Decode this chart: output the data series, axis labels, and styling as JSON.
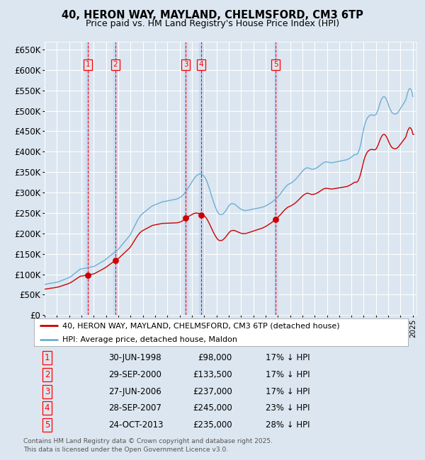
{
  "title": "40, HERON WAY, MAYLAND, CHELMSFORD, CM3 6TP",
  "subtitle": "Price paid vs. HM Land Registry's House Price Index (HPI)",
  "ylim": [
    0,
    670000
  ],
  "yticks": [
    0,
    50000,
    100000,
    150000,
    200000,
    250000,
    300000,
    350000,
    400000,
    450000,
    500000,
    550000,
    600000,
    650000
  ],
  "ytick_labels": [
    "£0",
    "£50K",
    "£100K",
    "£150K",
    "£200K",
    "£250K",
    "£300K",
    "£350K",
    "£400K",
    "£450K",
    "£500K",
    "£550K",
    "£600K",
    "£650K"
  ],
  "bg_color": "#dce6f0",
  "grid_color": "#ffffff",
  "sale_color": "#cc0000",
  "hpi_color": "#6baed6",
  "sale_label": "40, HERON WAY, MAYLAND, CHELMSFORD, CM3 6TP (detached house)",
  "hpi_label": "HPI: Average price, detached house, Maldon",
  "footer": "Contains HM Land Registry data © Crown copyright and database right 2025.\nThis data is licensed under the Open Government Licence v3.0.",
  "transactions": [
    {
      "num": 1,
      "date": "30-JUN-1998",
      "price": 98000,
      "pct": "17%",
      "year_x": 1998.5
    },
    {
      "num": 2,
      "date": "29-SEP-2000",
      "price": 133500,
      "pct": "17%",
      "year_x": 2000.75
    },
    {
      "num": 3,
      "date": "27-JUN-2006",
      "price": 237000,
      "pct": "17%",
      "year_x": 2006.5
    },
    {
      "num": 4,
      "date": "28-SEP-2007",
      "price": 245000,
      "pct": "23%",
      "year_x": 2007.75
    },
    {
      "num": 5,
      "date": "24-OCT-2013",
      "price": 235000,
      "pct": "28%",
      "year_x": 2013.83
    }
  ],
  "hpi_data": [
    [
      1995.0,
      75000
    ],
    [
      1995.08,
      75500
    ],
    [
      1995.17,
      76000
    ],
    [
      1995.25,
      76500
    ],
    [
      1995.33,
      77000
    ],
    [
      1995.42,
      77500
    ],
    [
      1995.5,
      78000
    ],
    [
      1995.58,
      78200
    ],
    [
      1995.67,
      78500
    ],
    [
      1995.75,
      79000
    ],
    [
      1995.83,
      79500
    ],
    [
      1995.92,
      80000
    ],
    [
      1996.0,
      80500
    ],
    [
      1996.08,
      81000
    ],
    [
      1996.17,
      82000
    ],
    [
      1996.25,
      83000
    ],
    [
      1996.33,
      84000
    ],
    [
      1996.42,
      85000
    ],
    [
      1996.5,
      86000
    ],
    [
      1996.58,
      87000
    ],
    [
      1996.67,
      88000
    ],
    [
      1996.75,
      89000
    ],
    [
      1996.83,
      90000
    ],
    [
      1996.92,
      91000
    ],
    [
      1997.0,
      92000
    ],
    [
      1997.08,
      93500
    ],
    [
      1997.17,
      95000
    ],
    [
      1997.25,
      97000
    ],
    [
      1997.33,
      99000
    ],
    [
      1997.42,
      101000
    ],
    [
      1997.5,
      103000
    ],
    [
      1997.58,
      105000
    ],
    [
      1997.67,
      107000
    ],
    [
      1997.75,
      109000
    ],
    [
      1997.83,
      111000
    ],
    [
      1997.92,
      113000
    ],
    [
      1998.0,
      113000
    ],
    [
      1998.08,
      113500
    ],
    [
      1998.17,
      114000
    ],
    [
      1998.25,
      114500
    ],
    [
      1998.33,
      115000
    ],
    [
      1998.42,
      115500
    ],
    [
      1998.5,
      116000
    ],
    [
      1998.58,
      116500
    ],
    [
      1998.67,
      117000
    ],
    [
      1998.75,
      117500
    ],
    [
      1998.83,
      118000
    ],
    [
      1998.92,
      118500
    ],
    [
      1999.0,
      119000
    ],
    [
      1999.08,
      120000
    ],
    [
      1999.17,
      121500
    ],
    [
      1999.25,
      123000
    ],
    [
      1999.33,
      124500
    ],
    [
      1999.42,
      126000
    ],
    [
      1999.5,
      127500
    ],
    [
      1999.58,
      129000
    ],
    [
      1999.67,
      130500
    ],
    [
      1999.75,
      132000
    ],
    [
      1999.83,
      133500
    ],
    [
      1999.92,
      135000
    ],
    [
      2000.0,
      137000
    ],
    [
      2000.08,
      139000
    ],
    [
      2000.17,
      141000
    ],
    [
      2000.25,
      143000
    ],
    [
      2000.33,
      145000
    ],
    [
      2000.42,
      147000
    ],
    [
      2000.5,
      149000
    ],
    [
      2000.58,
      151000
    ],
    [
      2000.67,
      153000
    ],
    [
      2000.75,
      155000
    ],
    [
      2000.83,
      157000
    ],
    [
      2000.92,
      159000
    ],
    [
      2001.0,
      161000
    ],
    [
      2001.08,
      164000
    ],
    [
      2001.17,
      167000
    ],
    [
      2001.25,
      170000
    ],
    [
      2001.33,
      173000
    ],
    [
      2001.42,
      176000
    ],
    [
      2001.5,
      179000
    ],
    [
      2001.58,
      182000
    ],
    [
      2001.67,
      185000
    ],
    [
      2001.75,
      188000
    ],
    [
      2001.83,
      191000
    ],
    [
      2001.92,
      194000
    ],
    [
      2002.0,
      198000
    ],
    [
      2002.08,
      203000
    ],
    [
      2002.17,
      208000
    ],
    [
      2002.25,
      213000
    ],
    [
      2002.33,
      218000
    ],
    [
      2002.42,
      223000
    ],
    [
      2002.5,
      228000
    ],
    [
      2002.58,
      233000
    ],
    [
      2002.67,
      237000
    ],
    [
      2002.75,
      241000
    ],
    [
      2002.83,
      244000
    ],
    [
      2002.92,
      247000
    ],
    [
      2003.0,
      249000
    ],
    [
      2003.08,
      251000
    ],
    [
      2003.17,
      253000
    ],
    [
      2003.25,
      255000
    ],
    [
      2003.33,
      257000
    ],
    [
      2003.42,
      259000
    ],
    [
      2003.5,
      261000
    ],
    [
      2003.58,
      263000
    ],
    [
      2003.67,
      265000
    ],
    [
      2003.75,
      267000
    ],
    [
      2003.83,
      268000
    ],
    [
      2003.92,
      269000
    ],
    [
      2004.0,
      270000
    ],
    [
      2004.08,
      271000
    ],
    [
      2004.17,
      272000
    ],
    [
      2004.25,
      273000
    ],
    [
      2004.33,
      274000
    ],
    [
      2004.42,
      275000
    ],
    [
      2004.5,
      276000
    ],
    [
      2004.58,
      277000
    ],
    [
      2004.67,
      277500
    ],
    [
      2004.75,
      278000
    ],
    [
      2004.83,
      278500
    ],
    [
      2004.92,
      279000
    ],
    [
      2005.0,
      279500
    ],
    [
      2005.08,
      280000
    ],
    [
      2005.17,
      280500
    ],
    [
      2005.25,
      281000
    ],
    [
      2005.33,
      281500
    ],
    [
      2005.42,
      282000
    ],
    [
      2005.5,
      282500
    ],
    [
      2005.58,
      283000
    ],
    [
      2005.67,
      283500
    ],
    [
      2005.75,
      284000
    ],
    [
      2005.83,
      285000
    ],
    [
      2005.92,
      286000
    ],
    [
      2006.0,
      287500
    ],
    [
      2006.08,
      289000
    ],
    [
      2006.17,
      291000
    ],
    [
      2006.25,
      293000
    ],
    [
      2006.33,
      296000
    ],
    [
      2006.42,
      299000
    ],
    [
      2006.5,
      302000
    ],
    [
      2006.58,
      306000
    ],
    [
      2006.67,
      310000
    ],
    [
      2006.75,
      314000
    ],
    [
      2006.83,
      318000
    ],
    [
      2006.92,
      322000
    ],
    [
      2007.0,
      326000
    ],
    [
      2007.08,
      330000
    ],
    [
      2007.17,
      334000
    ],
    [
      2007.25,
      337000
    ],
    [
      2007.33,
      340000
    ],
    [
      2007.42,
      342000
    ],
    [
      2007.5,
      344000
    ],
    [
      2007.58,
      345000
    ],
    [
      2007.67,
      345500
    ],
    [
      2007.75,
      345000
    ],
    [
      2007.83,
      344000
    ],
    [
      2007.92,
      342000
    ],
    [
      2008.0,
      340000
    ],
    [
      2008.08,
      336000
    ],
    [
      2008.17,
      331000
    ],
    [
      2008.25,
      325000
    ],
    [
      2008.33,
      318000
    ],
    [
      2008.42,
      310000
    ],
    [
      2008.5,
      302000
    ],
    [
      2008.58,
      294000
    ],
    [
      2008.67,
      286000
    ],
    [
      2008.75,
      278000
    ],
    [
      2008.83,
      271000
    ],
    [
      2008.92,
      264000
    ],
    [
      2009.0,
      258000
    ],
    [
      2009.08,
      253000
    ],
    [
      2009.17,
      249000
    ],
    [
      2009.25,
      247000
    ],
    [
      2009.33,
      246000
    ],
    [
      2009.42,
      246000
    ],
    [
      2009.5,
      247000
    ],
    [
      2009.58,
      249000
    ],
    [
      2009.67,
      252000
    ],
    [
      2009.75,
      255000
    ],
    [
      2009.83,
      259000
    ],
    [
      2009.92,
      263000
    ],
    [
      2010.0,
      267000
    ],
    [
      2010.08,
      270000
    ],
    [
      2010.17,
      272000
    ],
    [
      2010.25,
      273000
    ],
    [
      2010.33,
      273000
    ],
    [
      2010.42,
      272000
    ],
    [
      2010.5,
      271000
    ],
    [
      2010.58,
      269000
    ],
    [
      2010.67,
      267000
    ],
    [
      2010.75,
      265000
    ],
    [
      2010.83,
      263000
    ],
    [
      2010.92,
      261000
    ],
    [
      2011.0,
      259000
    ],
    [
      2011.08,
      258000
    ],
    [
      2011.17,
      257000
    ],
    [
      2011.25,
      256500
    ],
    [
      2011.33,
      256000
    ],
    [
      2011.42,
      256000
    ],
    [
      2011.5,
      256500
    ],
    [
      2011.58,
      257000
    ],
    [
      2011.67,
      257500
    ],
    [
      2011.75,
      258000
    ],
    [
      2011.83,
      258500
    ],
    [
      2011.92,
      259000
    ],
    [
      2012.0,
      259500
    ],
    [
      2012.08,
      260000
    ],
    [
      2012.17,
      260500
    ],
    [
      2012.25,
      261000
    ],
    [
      2012.33,
      261500
    ],
    [
      2012.42,
      262000
    ],
    [
      2012.5,
      262500
    ],
    [
      2012.58,
      263000
    ],
    [
      2012.67,
      263500
    ],
    [
      2012.75,
      264000
    ],
    [
      2012.83,
      265000
    ],
    [
      2012.92,
      266000
    ],
    [
      2013.0,
      267000
    ],
    [
      2013.08,
      268500
    ],
    [
      2013.17,
      270000
    ],
    [
      2013.25,
      271500
    ],
    [
      2013.33,
      273000
    ],
    [
      2013.42,
      274500
    ],
    [
      2013.5,
      276000
    ],
    [
      2013.58,
      278000
    ],
    [
      2013.67,
      280000
    ],
    [
      2013.75,
      282000
    ],
    [
      2013.83,
      284000
    ],
    [
      2013.92,
      286500
    ],
    [
      2014.0,
      289000
    ],
    [
      2014.08,
      292000
    ],
    [
      2014.17,
      295000
    ],
    [
      2014.25,
      298500
    ],
    [
      2014.33,
      302000
    ],
    [
      2014.42,
      305500
    ],
    [
      2014.5,
      309000
    ],
    [
      2014.58,
      312000
    ],
    [
      2014.67,
      315000
    ],
    [
      2014.75,
      317500
    ],
    [
      2014.83,
      319500
    ],
    [
      2014.92,
      321000
    ],
    [
      2015.0,
      322000
    ],
    [
      2015.08,
      323500
    ],
    [
      2015.17,
      325000
    ],
    [
      2015.25,
      327000
    ],
    [
      2015.33,
      329000
    ],
    [
      2015.42,
      331500
    ],
    [
      2015.5,
      334000
    ],
    [
      2015.58,
      337000
    ],
    [
      2015.67,
      340000
    ],
    [
      2015.75,
      343000
    ],
    [
      2015.83,
      346000
    ],
    [
      2015.92,
      349000
    ],
    [
      2016.0,
      352000
    ],
    [
      2016.08,
      355000
    ],
    [
      2016.17,
      357000
    ],
    [
      2016.25,
      359000
    ],
    [
      2016.33,
      360000
    ],
    [
      2016.42,
      360500
    ],
    [
      2016.5,
      360000
    ],
    [
      2016.58,
      359000
    ],
    [
      2016.67,
      358000
    ],
    [
      2016.75,
      357000
    ],
    [
      2016.83,
      357000
    ],
    [
      2016.92,
      357500
    ],
    [
      2017.0,
      358000
    ],
    [
      2017.08,
      359000
    ],
    [
      2017.17,
      360500
    ],
    [
      2017.25,
      362000
    ],
    [
      2017.33,
      364000
    ],
    [
      2017.42,
      366000
    ],
    [
      2017.5,
      368000
    ],
    [
      2017.58,
      370000
    ],
    [
      2017.67,
      372000
    ],
    [
      2017.75,
      373500
    ],
    [
      2017.83,
      374500
    ],
    [
      2017.92,
      375000
    ],
    [
      2018.0,
      375000
    ],
    [
      2018.08,
      374500
    ],
    [
      2018.17,
      374000
    ],
    [
      2018.25,
      373500
    ],
    [
      2018.33,
      373000
    ],
    [
      2018.42,
      373000
    ],
    [
      2018.5,
      373500
    ],
    [
      2018.58,
      374000
    ],
    [
      2018.67,
      374500
    ],
    [
      2018.75,
      375000
    ],
    [
      2018.83,
      375500
    ],
    [
      2018.92,
      376000
    ],
    [
      2019.0,
      376500
    ],
    [
      2019.08,
      377000
    ],
    [
      2019.17,
      377500
    ],
    [
      2019.25,
      378000
    ],
    [
      2019.33,
      378500
    ],
    [
      2019.42,
      379000
    ],
    [
      2019.5,
      379500
    ],
    [
      2019.58,
      380000
    ],
    [
      2019.67,
      381000
    ],
    [
      2019.75,
      382000
    ],
    [
      2019.83,
      383500
    ],
    [
      2019.92,
      385000
    ],
    [
      2020.0,
      387000
    ],
    [
      2020.08,
      389000
    ],
    [
      2020.17,
      391000
    ],
    [
      2020.25,
      393000
    ],
    [
      2020.33,
      393500
    ],
    [
      2020.42,
      393000
    ],
    [
      2020.5,
      395000
    ],
    [
      2020.58,
      400000
    ],
    [
      2020.67,
      408000
    ],
    [
      2020.75,
      418000
    ],
    [
      2020.83,
      430000
    ],
    [
      2020.92,
      443000
    ],
    [
      2021.0,
      456000
    ],
    [
      2021.08,
      466000
    ],
    [
      2021.17,
      474000
    ],
    [
      2021.25,
      480000
    ],
    [
      2021.33,
      484000
    ],
    [
      2021.42,
      487000
    ],
    [
      2021.5,
      489000
    ],
    [
      2021.58,
      490000
    ],
    [
      2021.67,
      490000
    ],
    [
      2021.75,
      489500
    ],
    [
      2021.83,
      489000
    ],
    [
      2021.92,
      489500
    ],
    [
      2022.0,
      491000
    ],
    [
      2022.08,
      496000
    ],
    [
      2022.17,
      503000
    ],
    [
      2022.25,
      511000
    ],
    [
      2022.33,
      519000
    ],
    [
      2022.42,
      526000
    ],
    [
      2022.5,
      531000
    ],
    [
      2022.58,
      534000
    ],
    [
      2022.67,
      535000
    ],
    [
      2022.75,
      533000
    ],
    [
      2022.83,
      529000
    ],
    [
      2022.92,
      523000
    ],
    [
      2023.0,
      516000
    ],
    [
      2023.08,
      509000
    ],
    [
      2023.17,
      503000
    ],
    [
      2023.25,
      498000
    ],
    [
      2023.33,
      495000
    ],
    [
      2023.42,
      493000
    ],
    [
      2023.5,
      492000
    ],
    [
      2023.58,
      492000
    ],
    [
      2023.67,
      493000
    ],
    [
      2023.75,
      495000
    ],
    [
      2023.83,
      498000
    ],
    [
      2023.92,
      502000
    ],
    [
      2024.0,
      506000
    ],
    [
      2024.08,
      510000
    ],
    [
      2024.17,
      514000
    ],
    [
      2024.25,
      518000
    ],
    [
      2024.33,
      522000
    ],
    [
      2024.42,
      526000
    ],
    [
      2024.5,
      535000
    ],
    [
      2024.58,
      545000
    ],
    [
      2024.67,
      552000
    ],
    [
      2024.75,
      555000
    ],
    [
      2024.83,
      553000
    ],
    [
      2024.92,
      548000
    ],
    [
      2025.0,
      535000
    ]
  ],
  "xlim": [
    1995.0,
    2025.3
  ],
  "xtick_years": [
    1995,
    1996,
    1997,
    1998,
    1999,
    2000,
    2001,
    2002,
    2003,
    2004,
    2005,
    2006,
    2007,
    2008,
    2009,
    2010,
    2011,
    2012,
    2013,
    2014,
    2015,
    2016,
    2017,
    2018,
    2019,
    2020,
    2021,
    2022,
    2023,
    2024,
    2025
  ],
  "shade_color": "#c6d9f0",
  "sale_dot_color": "#cc0000",
  "sale_dot_size": 40
}
